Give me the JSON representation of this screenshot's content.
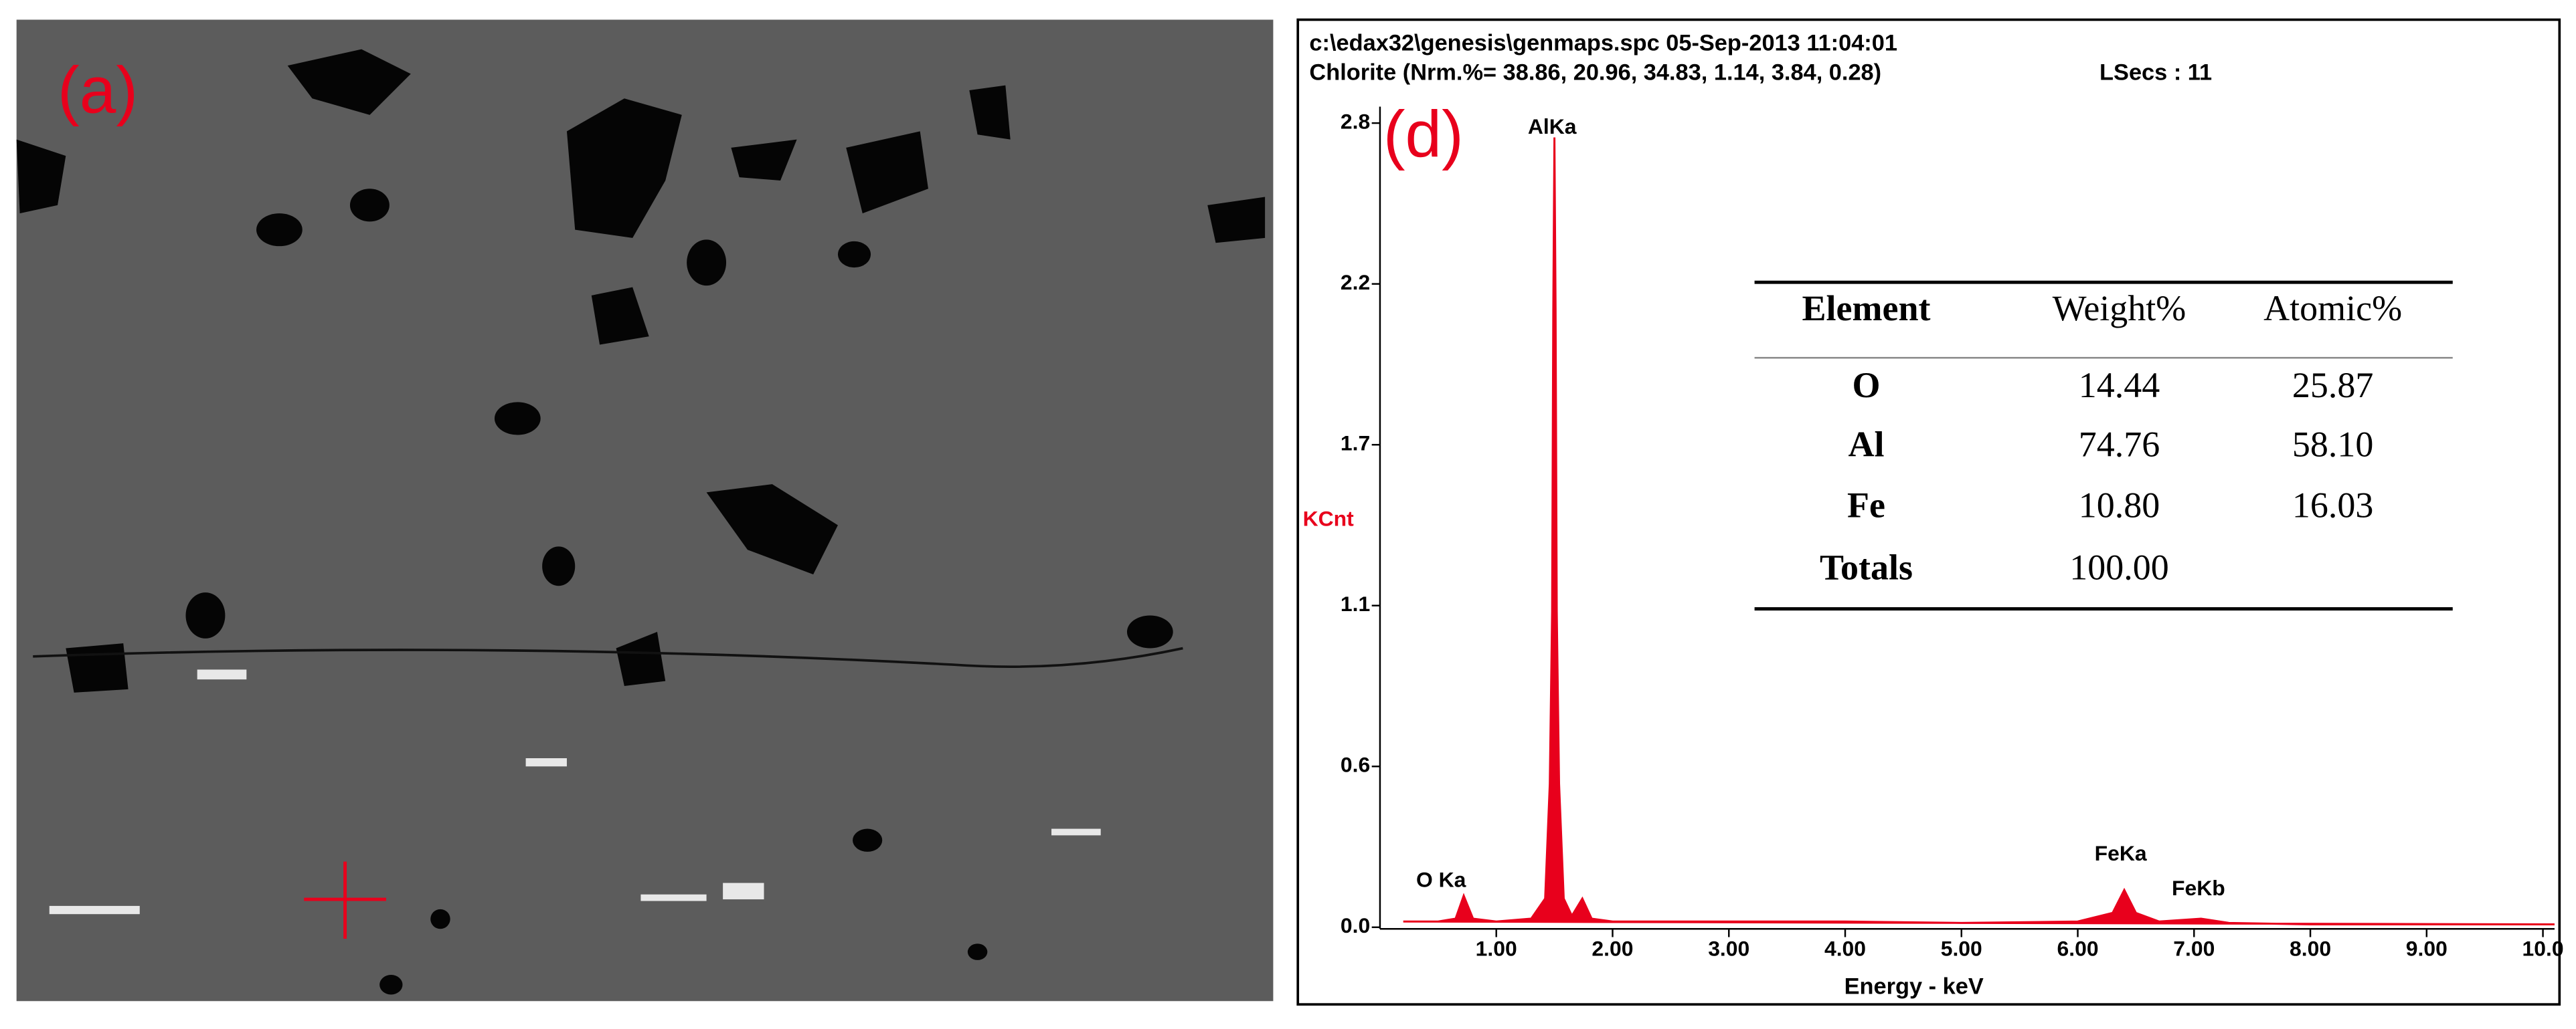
{
  "sem_panel": {
    "label": "(a)"
  },
  "chart_data": {
    "type": "area",
    "panel_label": "(d)",
    "header": [
      "c:\\edax32\\genesis\\genmaps.spc  05-Sep-2013 11:04:01",
      "Chlorite (Nrm.%= 38.86, 20.96, 34.83, 1.14, 3.84, 0.28)"
    ],
    "lsecs": "LSecs : 11",
    "y_label": "KCnt",
    "x_label": "Energy - keV",
    "annotations": [
      "O Ka",
      "AlKa",
      "FeKa",
      "FeKb"
    ],
    "x": [
      0.2,
      0.5,
      0.65,
      0.72,
      0.8,
      1.0,
      1.3,
      1.42,
      1.46,
      1.48,
      1.49,
      1.5,
      1.51,
      1.52,
      1.54,
      1.58,
      1.65,
      1.74,
      1.82,
      2.0,
      3.0,
      4.0,
      5.0,
      6.0,
      6.3,
      6.4,
      6.5,
      6.7,
      7.06,
      7.3,
      8.0,
      9.0,
      10.1
    ],
    "series": [
      {
        "name": "Spectrum",
        "color": "#e8001c",
        "values": [
          0.02,
          0.02,
          0.03,
          0.11,
          0.03,
          0.02,
          0.03,
          0.1,
          0.5,
          1.1,
          2.15,
          2.75,
          2.15,
          1.1,
          0.5,
          0.1,
          0.04,
          0.1,
          0.03,
          0.02,
          0.02,
          0.02,
          0.015,
          0.02,
          0.05,
          0.13,
          0.05,
          0.02,
          0.03,
          0.015,
          0.01,
          0.01,
          0.01
        ]
      }
    ],
    "xlim": [
      0,
      10.1
    ],
    "xticks": [
      {
        "value": 1,
        "label": "1.00"
      },
      {
        "value": 2,
        "label": "2.00"
      },
      {
        "value": 3,
        "label": "3.00"
      },
      {
        "value": 4,
        "label": "4.00"
      },
      {
        "value": 5,
        "label": "5.00"
      },
      {
        "value": 6,
        "label": "6.00"
      },
      {
        "value": 7,
        "label": "7.00"
      },
      {
        "value": 8,
        "label": "8.00"
      },
      {
        "value": 9,
        "label": "9.00"
      },
      {
        "value": 10,
        "label": "10.0"
      }
    ],
    "ylim": [
      0,
      2.8
    ],
    "yticks": [
      {
        "value": 0,
        "label": "0.0"
      },
      {
        "value": 0.56,
        "label": "0.6"
      },
      {
        "value": 1.12,
        "label": "1.1"
      },
      {
        "value": 1.68,
        "label": "1.7"
      },
      {
        "value": 2.24,
        "label": "2.2"
      },
      2.8
    ],
    "grid": false
  },
  "table": {
    "header": [
      "Element",
      "Weight%",
      "Atomic%"
    ],
    "rows": [
      [
        "O",
        "14.44",
        "25.87"
      ],
      [
        "Al",
        "74.76",
        "58.10"
      ],
      [
        "Fe",
        "10.80",
        "16.03"
      ],
      [
        "Totals",
        "100.00"
      ]
    ]
  }
}
